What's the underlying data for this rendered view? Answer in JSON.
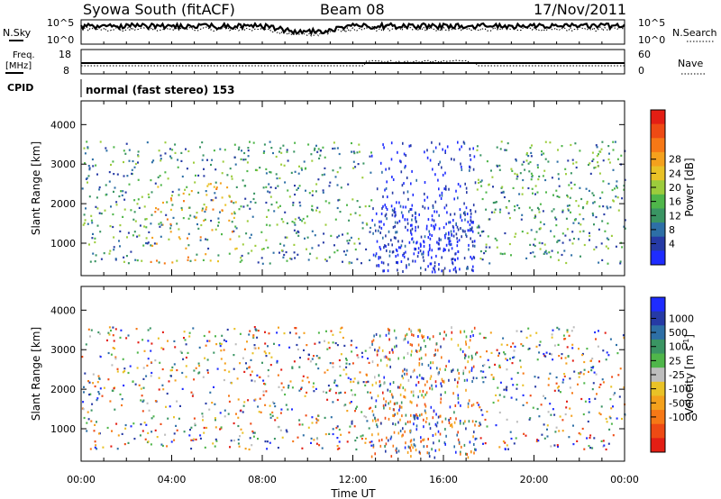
{
  "header": {
    "title": "Syowa South (fitACF)",
    "beam": "Beam 08",
    "date": "17/Nov/2011"
  },
  "noise_panel": {
    "left_label": "N.Sky",
    "right_label": "N.Search",
    "left_ticks": [
      "10^5",
      "10^0"
    ],
    "right_ticks": [
      "10^5",
      "10^0"
    ]
  },
  "freq_panel": {
    "left_label_line1": "Freq.",
    "left_label_line2": "[MHz]",
    "left_ticks": [
      "18",
      "8"
    ],
    "right_label": "Nave",
    "right_ticks": [
      "60",
      "0"
    ]
  },
  "cpid": {
    "label": "CPID",
    "value": "normal (fast stereo) 153"
  },
  "chart_data": [
    {
      "type": "heatmap",
      "name": "Power",
      "ylabel": "Slant Range [km]",
      "y_ticks": [
        1000,
        2000,
        3000,
        4000
      ],
      "ylim": [
        180,
        4600
      ],
      "x_ticks": [
        "00:00",
        "04:00",
        "08:00",
        "12:00",
        "16:00",
        "20:00",
        "00:00"
      ],
      "xlim_hours": [
        0,
        24
      ],
      "colorbar": {
        "label": "Power [dB]",
        "ticks": [
          "4",
          "8",
          "12",
          "16",
          "20",
          "24",
          "28"
        ],
        "colors": [
          "#1e2cff",
          "#263aa5",
          "#2d6fa6",
          "#3a9563",
          "#4fb64a",
          "#9ccc3c",
          "#e9c227",
          "#f4a11d",
          "#f67816",
          "#ee4a14",
          "#e31e14"
        ]
      }
    },
    {
      "type": "heatmap",
      "name": "Velocity",
      "ylabel": "Slant Range [km]",
      "y_ticks": [
        1000,
        2000,
        3000,
        4000
      ],
      "ylim": [
        180,
        4600
      ],
      "x_ticks": [
        "00:00",
        "04:00",
        "08:00",
        "12:00",
        "16:00",
        "20:00",
        "00:00"
      ],
      "xlim_hours": [
        0,
        24
      ],
      "xlabel": "Time UT",
      "colorbar": {
        "label_main": "Velocity [m s",
        "label_sup": "-1",
        "label_end": "]",
        "ticks": [
          "1000",
          "500",
          "100",
          "25",
          "-25",
          "-100",
          "-500",
          "-1000"
        ],
        "colors": [
          "#1e2cff",
          "#263aa5",
          "#2d6fa6",
          "#3a9563",
          "#4fb64a",
          "#bdbdbd",
          "#e9c227",
          "#f4a11d",
          "#f67816",
          "#ee4a14",
          "#e31e14"
        ]
      }
    }
  ]
}
